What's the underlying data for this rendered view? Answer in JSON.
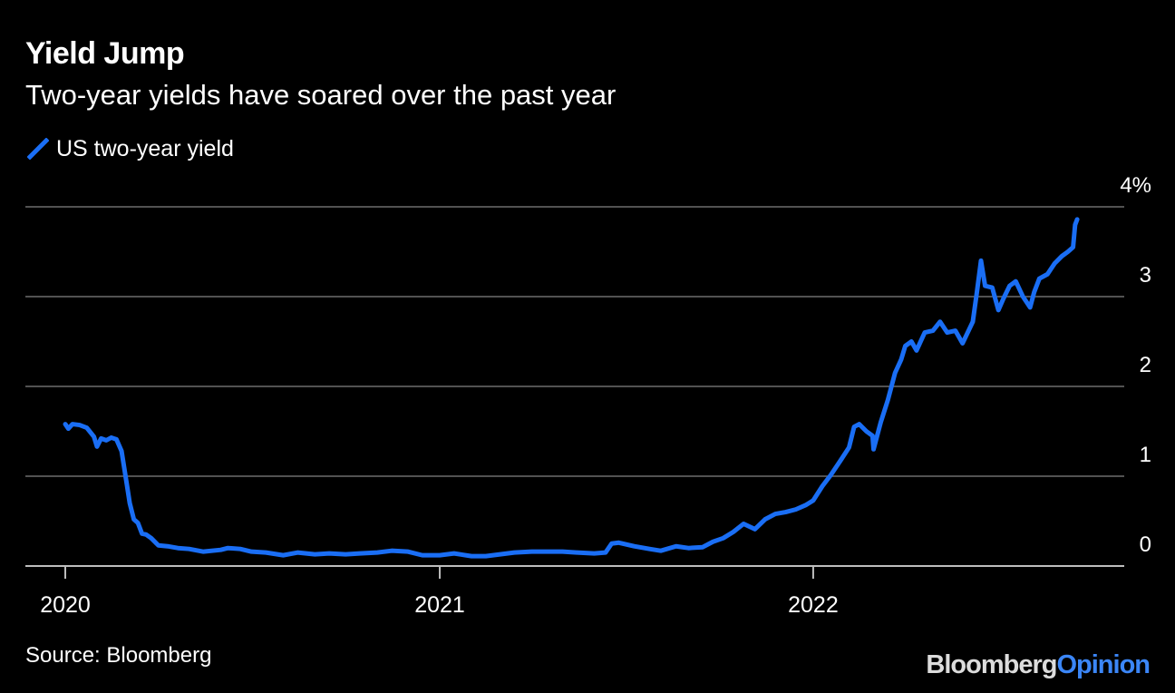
{
  "header": {
    "title": "Yield Jump",
    "subtitle": "Two-year yields have soared over the past year"
  },
  "legend": {
    "label": "US two-year yield"
  },
  "colors": {
    "background": "#000000",
    "series": "#1a6ef5",
    "grid": "#6e6e6e",
    "text": "#ffffff"
  },
  "footer": {
    "source": "Source: Bloomberg",
    "brand_part1": "Bloomberg",
    "brand_part2": "Opinion"
  },
  "chart_data": {
    "type": "line",
    "title": "Yield Jump",
    "subtitle": "Two-year yields have soared over the past year",
    "x_ticks": [
      "2020",
      "2021",
      "2022"
    ],
    "y_ticks": [
      "0",
      "1",
      "2",
      "3",
      "4%"
    ],
    "ylim": [
      0,
      4
    ],
    "xlim": [
      "2019-11-23",
      "2022-11-01"
    ],
    "grid": true,
    "legend_position": "top-left",
    "series": [
      {
        "name": "US two-year yield",
        "points": [
          [
            "2020-01-01",
            1.58
          ],
          [
            "2020-01-04",
            1.53
          ],
          [
            "2020-01-08",
            1.58
          ],
          [
            "2020-01-15",
            1.57
          ],
          [
            "2020-01-22",
            1.54
          ],
          [
            "2020-01-29",
            1.44
          ],
          [
            "2020-02-01",
            1.33
          ],
          [
            "2020-02-05",
            1.42
          ],
          [
            "2020-02-10",
            1.4
          ],
          [
            "2020-02-15",
            1.43
          ],
          [
            "2020-02-20",
            1.41
          ],
          [
            "2020-02-25",
            1.28
          ],
          [
            "2020-03-01",
            0.92
          ],
          [
            "2020-03-04",
            0.7
          ],
          [
            "2020-03-08",
            0.52
          ],
          [
            "2020-03-12",
            0.48
          ],
          [
            "2020-03-16",
            0.36
          ],
          [
            "2020-03-20",
            0.35
          ],
          [
            "2020-03-25",
            0.31
          ],
          [
            "2020-04-01",
            0.23
          ],
          [
            "2020-04-10",
            0.22
          ],
          [
            "2020-04-20",
            0.2
          ],
          [
            "2020-05-01",
            0.19
          ],
          [
            "2020-05-15",
            0.16
          ],
          [
            "2020-06-01",
            0.18
          ],
          [
            "2020-06-08",
            0.2
          ],
          [
            "2020-06-20",
            0.19
          ],
          [
            "2020-07-01",
            0.16
          ],
          [
            "2020-07-15",
            0.15
          ],
          [
            "2020-08-01",
            0.12
          ],
          [
            "2020-08-15",
            0.15
          ],
          [
            "2020-09-01",
            0.13
          ],
          [
            "2020-09-15",
            0.14
          ],
          [
            "2020-10-01",
            0.13
          ],
          [
            "2020-10-15",
            0.14
          ],
          [
            "2020-11-01",
            0.15
          ],
          [
            "2020-11-15",
            0.17
          ],
          [
            "2020-12-01",
            0.16
          ],
          [
            "2020-12-15",
            0.12
          ],
          [
            "2021-01-01",
            0.12
          ],
          [
            "2021-01-15",
            0.14
          ],
          [
            "2021-02-01",
            0.11
          ],
          [
            "2021-02-15",
            0.11
          ],
          [
            "2021-03-01",
            0.13
          ],
          [
            "2021-03-15",
            0.15
          ],
          [
            "2021-04-01",
            0.16
          ],
          [
            "2021-04-15",
            0.16
          ],
          [
            "2021-05-01",
            0.16
          ],
          [
            "2021-05-15",
            0.15
          ],
          [
            "2021-06-01",
            0.14
          ],
          [
            "2021-06-12",
            0.15
          ],
          [
            "2021-06-18",
            0.25
          ],
          [
            "2021-06-25",
            0.26
          ],
          [
            "2021-07-10",
            0.22
          ],
          [
            "2021-07-25",
            0.19
          ],
          [
            "2021-08-05",
            0.17
          ],
          [
            "2021-08-20",
            0.22
          ],
          [
            "2021-09-01",
            0.2
          ],
          [
            "2021-09-15",
            0.21
          ],
          [
            "2021-09-25",
            0.27
          ],
          [
            "2021-10-05",
            0.31
          ],
          [
            "2021-10-15",
            0.38
          ],
          [
            "2021-10-25",
            0.47
          ],
          [
            "2021-11-05",
            0.41
          ],
          [
            "2021-11-15",
            0.52
          ],
          [
            "2021-11-25",
            0.58
          ],
          [
            "2021-12-05",
            0.6
          ],
          [
            "2021-12-15",
            0.63
          ],
          [
            "2021-12-25",
            0.68
          ],
          [
            "2022-01-01",
            0.73
          ],
          [
            "2022-01-10",
            0.89
          ],
          [
            "2022-01-18",
            1.01
          ],
          [
            "2022-01-28",
            1.18
          ],
          [
            "2022-02-05",
            1.32
          ],
          [
            "2022-02-10",
            1.55
          ],
          [
            "2022-02-15",
            1.58
          ],
          [
            "2022-02-22",
            1.5
          ],
          [
            "2022-02-28",
            1.45
          ],
          [
            "2022-03-01",
            1.3
          ],
          [
            "2022-03-08",
            1.6
          ],
          [
            "2022-03-15",
            1.85
          ],
          [
            "2022-03-22",
            2.15
          ],
          [
            "2022-03-28",
            2.3
          ],
          [
            "2022-04-01",
            2.45
          ],
          [
            "2022-04-07",
            2.5
          ],
          [
            "2022-04-12",
            2.4
          ],
          [
            "2022-04-20",
            2.6
          ],
          [
            "2022-04-28",
            2.62
          ],
          [
            "2022-05-05",
            2.72
          ],
          [
            "2022-05-12",
            2.6
          ],
          [
            "2022-05-20",
            2.62
          ],
          [
            "2022-05-27",
            2.48
          ],
          [
            "2022-06-01",
            2.6
          ],
          [
            "2022-06-06",
            2.72
          ],
          [
            "2022-06-10",
            3.05
          ],
          [
            "2022-06-14",
            3.4
          ],
          [
            "2022-06-18",
            3.12
          ],
          [
            "2022-06-25",
            3.1
          ],
          [
            "2022-07-01",
            2.85
          ],
          [
            "2022-07-06",
            2.98
          ],
          [
            "2022-07-12",
            3.12
          ],
          [
            "2022-07-18",
            3.17
          ],
          [
            "2022-07-25",
            3.0
          ],
          [
            "2022-08-01",
            2.88
          ],
          [
            "2022-08-05",
            3.05
          ],
          [
            "2022-08-10",
            3.2
          ],
          [
            "2022-08-18",
            3.25
          ],
          [
            "2022-08-25",
            3.37
          ],
          [
            "2022-09-01",
            3.45
          ],
          [
            "2022-09-07",
            3.5
          ],
          [
            "2022-09-12",
            3.55
          ],
          [
            "2022-09-14",
            3.8
          ],
          [
            "2022-09-16",
            3.86
          ]
        ]
      }
    ]
  }
}
